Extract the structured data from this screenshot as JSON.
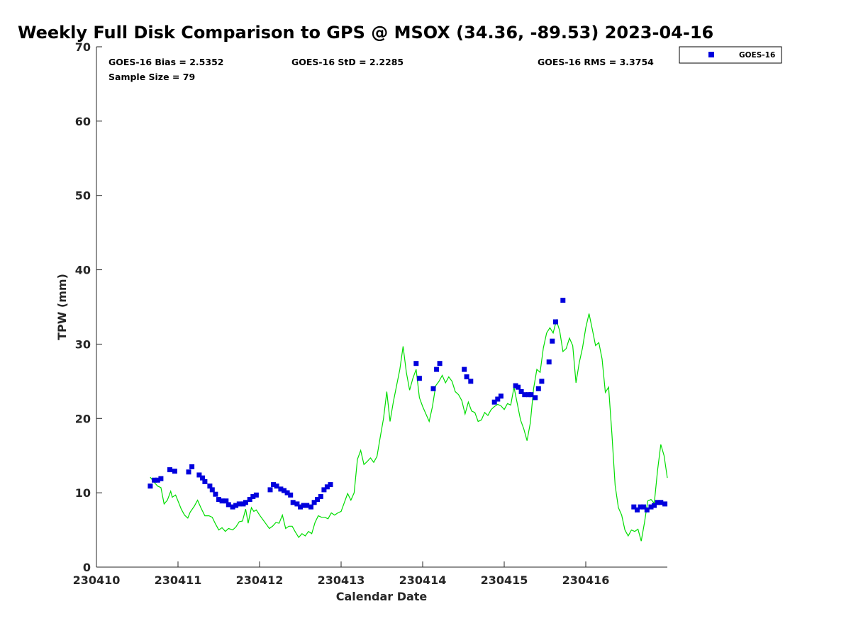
{
  "chart_data": {
    "type": "scatter",
    "title": "Weekly Full Disk Comparison to GPS @ MSOX (34.36, -89.53) 2023-04-16",
    "xlabel": "Calendar Date",
    "ylabel": "TPW (mm)",
    "xlim": [
      230410,
      230417
    ],
    "ylim": [
      0,
      70
    ],
    "x_ticks": [
      230410,
      230411,
      230412,
      230413,
      230414,
      230415,
      230416
    ],
    "x_tick_labels": [
      "230410",
      "230411",
      "230412",
      "230413",
      "230414",
      "230415",
      "230416"
    ],
    "y_ticks": [
      0,
      10,
      20,
      30,
      40,
      50,
      60,
      70
    ],
    "y_tick_labels": [
      "0",
      "10",
      "20",
      "30",
      "40",
      "50",
      "60",
      "70"
    ],
    "grid": false,
    "legend_position": "top-right, outside plot",
    "stats": {
      "bias": "GOES-16 Bias = 2.5352",
      "std": "GOES-16 StD = 2.2285",
      "rms": "GOES-16 RMS = 3.3754",
      "sample_size": "Sample Size = 79"
    },
    "series": [
      {
        "name": "GOES-16",
        "kind": "scatter",
        "color": "#0000dd",
        "marker": "square",
        "points": [
          [
            230410.66,
            10.9
          ],
          [
            230410.71,
            11.7
          ],
          [
            230410.75,
            11.7
          ],
          [
            230410.79,
            11.9
          ],
          [
            230410.9,
            13.1
          ],
          [
            230410.96,
            12.9
          ],
          [
            230411.13,
            12.8
          ],
          [
            230411.17,
            13.5
          ],
          [
            230411.26,
            12.4
          ],
          [
            230411.3,
            12.0
          ],
          [
            230411.33,
            11.5
          ],
          [
            230411.39,
            10.9
          ],
          [
            230411.42,
            10.4
          ],
          [
            230411.46,
            9.8
          ],
          [
            230411.5,
            9.1
          ],
          [
            230411.54,
            8.9
          ],
          [
            230411.59,
            8.9
          ],
          [
            230411.62,
            8.4
          ],
          [
            230411.67,
            8.1
          ],
          [
            230411.71,
            8.3
          ],
          [
            230411.75,
            8.5
          ],
          [
            230411.8,
            8.5
          ],
          [
            230411.83,
            8.7
          ],
          [
            230411.88,
            9.1
          ],
          [
            230411.92,
            9.5
          ],
          [
            230411.96,
            9.7
          ],
          [
            230412.13,
            10.4
          ],
          [
            230412.17,
            11.1
          ],
          [
            230412.21,
            10.9
          ],
          [
            230412.26,
            10.5
          ],
          [
            230412.3,
            10.3
          ],
          [
            230412.34,
            10.0
          ],
          [
            230412.38,
            9.7
          ],
          [
            230412.41,
            8.7
          ],
          [
            230412.46,
            8.5
          ],
          [
            230412.5,
            8.1
          ],
          [
            230412.54,
            8.3
          ],
          [
            230412.58,
            8.3
          ],
          [
            230412.63,
            8.1
          ],
          [
            230412.67,
            8.7
          ],
          [
            230412.71,
            9.1
          ],
          [
            230412.75,
            9.5
          ],
          [
            230412.79,
            10.4
          ],
          [
            230412.83,
            10.8
          ],
          [
            230412.87,
            11.1
          ],
          [
            230413.92,
            27.4
          ],
          [
            230413.96,
            25.4
          ],
          [
            230414.13,
            24.0
          ],
          [
            230414.17,
            26.6
          ],
          [
            230414.21,
            27.4
          ],
          [
            230414.51,
            26.6
          ],
          [
            230414.54,
            25.6
          ],
          [
            230414.59,
            25.0
          ],
          [
            230414.88,
            22.2
          ],
          [
            230414.92,
            22.6
          ],
          [
            230414.96,
            23.0
          ],
          [
            230415.14,
            24.4
          ],
          [
            230415.17,
            24.2
          ],
          [
            230415.21,
            23.6
          ],
          [
            230415.25,
            23.2
          ],
          [
            230415.3,
            23.2
          ],
          [
            230415.33,
            23.2
          ],
          [
            230415.38,
            22.8
          ],
          [
            230415.42,
            24.0
          ],
          [
            230415.46,
            25.0
          ],
          [
            230415.55,
            27.6
          ],
          [
            230415.59,
            30.4
          ],
          [
            230415.63,
            33.0
          ],
          [
            230415.72,
            35.9
          ],
          [
            230416.59,
            8.1
          ],
          [
            230416.63,
            7.7
          ],
          [
            230416.67,
            8.1
          ],
          [
            230416.71,
            8.1
          ],
          [
            230416.75,
            7.7
          ],
          [
            230416.8,
            8.1
          ],
          [
            230416.84,
            8.3
          ],
          [
            230416.88,
            8.7
          ],
          [
            230416.92,
            8.7
          ],
          [
            230416.97,
            8.5
          ]
        ]
      },
      {
        "kind": "line",
        "color": "#00dd00",
        "points": [
          [
            230410.66,
            12.1
          ],
          [
            230410.7,
            11.5
          ],
          [
            230410.75,
            10.9
          ],
          [
            230410.79,
            10.7
          ],
          [
            230410.83,
            8.5
          ],
          [
            230410.87,
            9.0
          ],
          [
            230410.91,
            10.2
          ],
          [
            230410.93,
            9.4
          ],
          [
            230410.97,
            9.7
          ],
          [
            230411.0,
            8.9
          ],
          [
            230411.04,
            7.8
          ],
          [
            230411.08,
            7.0
          ],
          [
            230411.12,
            6.6
          ],
          [
            230411.15,
            7.4
          ],
          [
            230411.2,
            8.2
          ],
          [
            230411.24,
            9.0
          ],
          [
            230411.28,
            8.0
          ],
          [
            230411.33,
            6.9
          ],
          [
            230411.38,
            6.9
          ],
          [
            230411.42,
            6.7
          ],
          [
            230411.46,
            5.8
          ],
          [
            230411.5,
            5.0
          ],
          [
            230411.54,
            5.3
          ],
          [
            230411.58,
            4.8
          ],
          [
            230411.62,
            5.2
          ],
          [
            230411.67,
            5.0
          ],
          [
            230411.71,
            5.4
          ],
          [
            230411.75,
            6.1
          ],
          [
            230411.79,
            6.2
          ],
          [
            230411.83,
            7.8
          ],
          [
            230411.86,
            5.9
          ],
          [
            230411.9,
            8.0
          ],
          [
            230411.93,
            7.5
          ],
          [
            230411.96,
            7.7
          ],
          [
            230412.0,
            7.0
          ],
          [
            230412.04,
            6.4
          ],
          [
            230412.08,
            5.8
          ],
          [
            230412.12,
            5.2
          ],
          [
            230412.16,
            5.5
          ],
          [
            230412.2,
            6.0
          ],
          [
            230412.24,
            5.9
          ],
          [
            230412.28,
            7.0
          ],
          [
            230412.32,
            5.2
          ],
          [
            230412.36,
            5.5
          ],
          [
            230412.4,
            5.5
          ],
          [
            230412.44,
            4.7
          ],
          [
            230412.48,
            4.0
          ],
          [
            230412.52,
            4.5
          ],
          [
            230412.56,
            4.2
          ],
          [
            230412.6,
            4.8
          ],
          [
            230412.64,
            4.5
          ],
          [
            230412.68,
            6.0
          ],
          [
            230412.72,
            6.9
          ],
          [
            230412.76,
            6.7
          ],
          [
            230412.8,
            6.7
          ],
          [
            230412.84,
            6.5
          ],
          [
            230412.88,
            7.3
          ],
          [
            230412.92,
            7.0
          ],
          [
            230412.96,
            7.3
          ],
          [
            230413.0,
            7.5
          ],
          [
            230413.04,
            8.7
          ],
          [
            230413.08,
            9.9
          ],
          [
            230413.12,
            9.0
          ],
          [
            230413.16,
            10.0
          ],
          [
            230413.2,
            14.5
          ],
          [
            230413.24,
            15.7
          ],
          [
            230413.28,
            13.8
          ],
          [
            230413.32,
            14.2
          ],
          [
            230413.36,
            14.7
          ],
          [
            230413.4,
            14.1
          ],
          [
            230413.44,
            14.9
          ],
          [
            230413.48,
            17.5
          ],
          [
            230413.52,
            20.0
          ],
          [
            230413.56,
            23.6
          ],
          [
            230413.6,
            19.6
          ],
          [
            230413.64,
            22.2
          ],
          [
            230413.68,
            24.4
          ],
          [
            230413.72,
            26.6
          ],
          [
            230413.76,
            29.7
          ],
          [
            230413.8,
            26.2
          ],
          [
            230413.84,
            23.8
          ],
          [
            230413.88,
            25.4
          ],
          [
            230413.92,
            26.6
          ],
          [
            230413.96,
            22.8
          ],
          [
            230414.0,
            21.6
          ],
          [
            230414.04,
            20.6
          ],
          [
            230414.08,
            19.6
          ],
          [
            230414.12,
            21.6
          ],
          [
            230414.16,
            24.4
          ],
          [
            230414.2,
            25.0
          ],
          [
            230414.24,
            25.8
          ],
          [
            230414.28,
            24.8
          ],
          [
            230414.32,
            25.6
          ],
          [
            230414.36,
            25.0
          ],
          [
            230414.4,
            23.6
          ],
          [
            230414.44,
            23.2
          ],
          [
            230414.48,
            22.4
          ],
          [
            230414.52,
            20.6
          ],
          [
            230414.56,
            22.2
          ],
          [
            230414.6,
            21.0
          ],
          [
            230414.64,
            20.8
          ],
          [
            230414.68,
            19.6
          ],
          [
            230414.72,
            19.8
          ],
          [
            230414.76,
            20.8
          ],
          [
            230414.8,
            20.4
          ],
          [
            230414.84,
            21.2
          ],
          [
            230414.88,
            21.6
          ],
          [
            230414.92,
            21.9
          ],
          [
            230414.96,
            21.7
          ],
          [
            230415.0,
            21.2
          ],
          [
            230415.04,
            22.0
          ],
          [
            230415.08,
            21.8
          ],
          [
            230415.12,
            24.2
          ],
          [
            230415.16,
            22.0
          ],
          [
            230415.2,
            19.8
          ],
          [
            230415.24,
            18.6
          ],
          [
            230415.28,
            17.0
          ],
          [
            230415.32,
            19.4
          ],
          [
            230415.36,
            24.0
          ],
          [
            230415.4,
            26.6
          ],
          [
            230415.44,
            26.2
          ],
          [
            230415.48,
            29.5
          ],
          [
            230415.52,
            31.5
          ],
          [
            230415.56,
            32.2
          ],
          [
            230415.6,
            31.5
          ],
          [
            230415.64,
            33.2
          ],
          [
            230415.68,
            31.8
          ],
          [
            230415.72,
            29.0
          ],
          [
            230415.76,
            29.4
          ],
          [
            230415.8,
            30.8
          ],
          [
            230415.84,
            29.8
          ],
          [
            230415.88,
            24.8
          ],
          [
            230415.92,
            27.5
          ],
          [
            230415.96,
            29.5
          ],
          [
            230416.0,
            32.2
          ],
          [
            230416.04,
            34.1
          ],
          [
            230416.08,
            32.0
          ],
          [
            230416.12,
            29.8
          ],
          [
            230416.16,
            30.2
          ],
          [
            230416.2,
            28.0
          ],
          [
            230416.24,
            23.5
          ],
          [
            230416.28,
            24.2
          ],
          [
            230416.32,
            18.0
          ],
          [
            230416.36,
            11.0
          ],
          [
            230416.4,
            8.0
          ],
          [
            230416.44,
            7.0
          ],
          [
            230416.48,
            5.0
          ],
          [
            230416.52,
            4.2
          ],
          [
            230416.56,
            5.0
          ],
          [
            230416.6,
            4.8
          ],
          [
            230416.64,
            5.1
          ],
          [
            230416.68,
            3.5
          ],
          [
            230416.72,
            6.0
          ],
          [
            230416.76,
            8.9
          ],
          [
            230416.8,
            9.1
          ],
          [
            230416.84,
            8.6
          ],
          [
            230416.88,
            13.0
          ],
          [
            230416.92,
            16.5
          ],
          [
            230416.96,
            15.0
          ],
          [
            230417.0,
            12.0
          ]
        ]
      }
    ]
  },
  "legend": {
    "entries": [
      {
        "label": "GOES-16",
        "color": "#0000dd",
        "marker": "square"
      }
    ]
  }
}
